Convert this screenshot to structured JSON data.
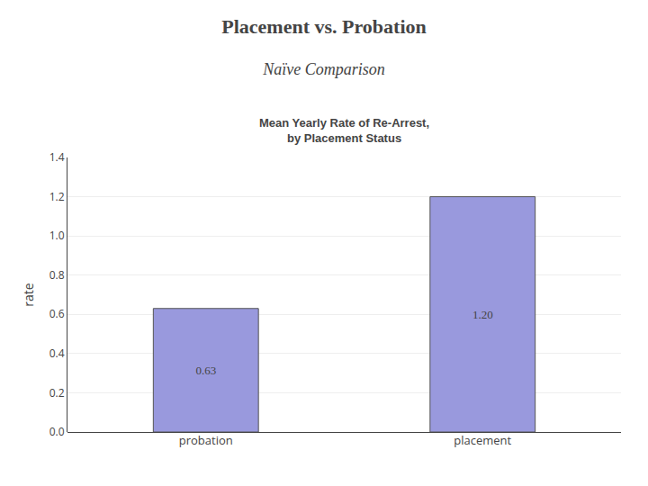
{
  "chart_data": {
    "type": "bar",
    "title": "Placement vs. Probation",
    "subtitle": "Naïve Comparison",
    "annotations": [
      "Mean Yearly Rate of Re-Arrest,",
      "by Placement Status"
    ],
    "categories": [
      "probation",
      "placement"
    ],
    "values": [
      0.63,
      1.2
    ],
    "value_labels": [
      "0.63",
      "1.20"
    ],
    "data_labels": true,
    "color": "#9999dd",
    "ylabel": "rate",
    "ylim": [
      0,
      1.4
    ],
    "yticks": [
      {
        "value": 0.0,
        "label": "0.0"
      },
      {
        "value": 0.2,
        "label": "0.2"
      },
      {
        "value": 0.4,
        "label": "0.4"
      },
      {
        "value": 0.6,
        "label": "0.6"
      },
      {
        "value": 0.8,
        "label": "0.8"
      },
      {
        "value": 1.0,
        "label": "1.0"
      },
      {
        "value": 1.2,
        "label": "1.2"
      },
      {
        "value": 1.4,
        "label": "1.4"
      }
    ],
    "grid": true
  }
}
